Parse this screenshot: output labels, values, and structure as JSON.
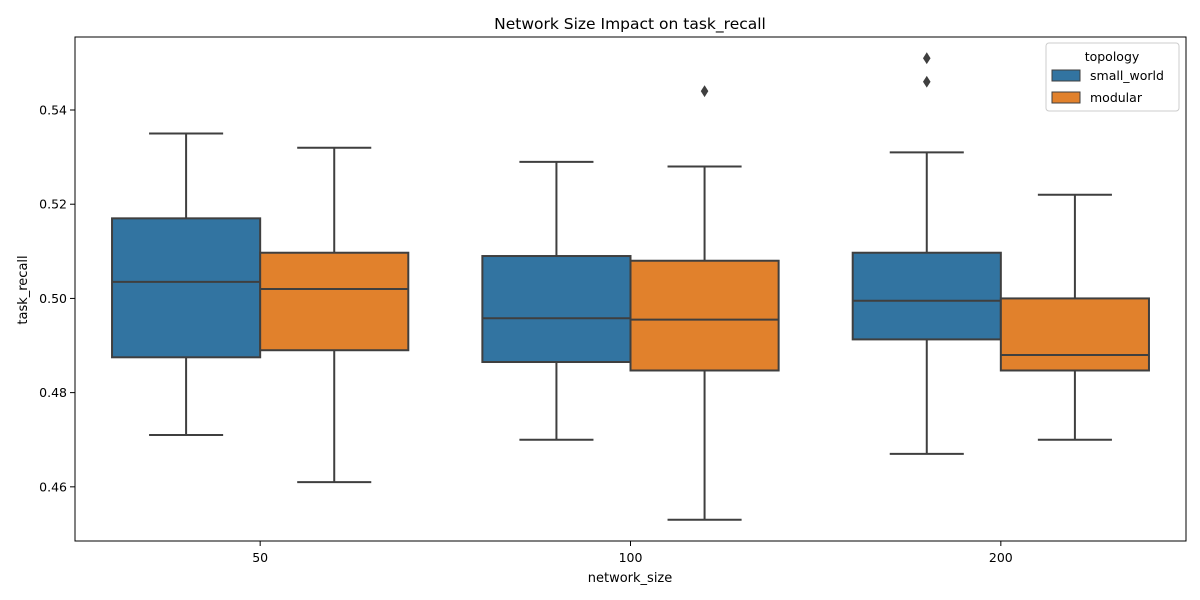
{
  "chart_data": {
    "type": "box",
    "title": "Network Size Impact on task_recall",
    "xlabel": "network_size",
    "ylabel": "task_recall",
    "categories": [
      "50",
      "100",
      "200"
    ],
    "ylim": [
      0.4485,
      0.5555
    ],
    "yticks": [
      0.46,
      0.48,
      0.5,
      0.52,
      0.54
    ],
    "ytick_labels": [
      "0.46",
      "0.48",
      "0.50",
      "0.52",
      "0.54"
    ],
    "legend": {
      "title": "topology",
      "position": "upper right"
    },
    "grid": false,
    "series": [
      {
        "name": "small_world",
        "color": "#3274a1",
        "boxes": [
          {
            "category": "50",
            "whisker_low": 0.471,
            "q1": 0.4875,
            "median": 0.5035,
            "q3": 0.517,
            "whisker_high": 0.535,
            "outliers": []
          },
          {
            "category": "100",
            "whisker_low": 0.47,
            "q1": 0.4865,
            "median": 0.4958,
            "q3": 0.509,
            "whisker_high": 0.529,
            "outliers": []
          },
          {
            "category": "200",
            "whisker_low": 0.467,
            "q1": 0.4913,
            "median": 0.4995,
            "q3": 0.5097,
            "whisker_high": 0.531,
            "outliers": [
              0.546,
              0.551
            ]
          }
        ]
      },
      {
        "name": "modular",
        "color": "#e1812c",
        "boxes": [
          {
            "category": "50",
            "whisker_low": 0.461,
            "q1": 0.489,
            "median": 0.502,
            "q3": 0.5097,
            "whisker_high": 0.532,
            "outliers": []
          },
          {
            "category": "100",
            "whisker_low": 0.453,
            "q1": 0.4847,
            "median": 0.4955,
            "q3": 0.508,
            "whisker_high": 0.528,
            "outliers": [
              0.544
            ]
          },
          {
            "category": "200",
            "whisker_low": 0.47,
            "q1": 0.4847,
            "median": 0.488,
            "q3": 0.5,
            "whisker_high": 0.522,
            "outliers": []
          }
        ]
      }
    ]
  }
}
